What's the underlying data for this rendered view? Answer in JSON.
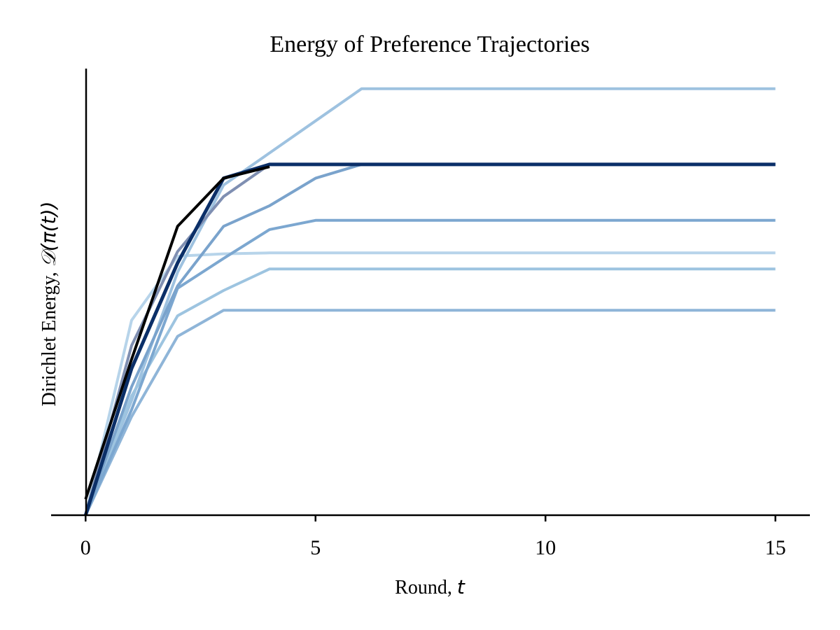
{
  "chart_data": {
    "type": "line",
    "title": "Energy of Preference Trajectories",
    "xlabel": {
      "text": "Round, ",
      "math": "t"
    },
    "ylabel": {
      "text": "Dirichlet Energy, ",
      "math": "𝒟(π(t))"
    },
    "xlim": [
      -0.75,
      15.75
    ],
    "ylim": [
      0,
      9.74
    ],
    "xticks": [
      0,
      5,
      10,
      15
    ],
    "yticks": [],
    "grid": false,
    "legend": "none",
    "series": [
      {
        "color": "#b7d4ea",
        "alpha": 1,
        "width": 4,
        "x": [
          0,
          1,
          2,
          3,
          4,
          5,
          6,
          15
        ],
        "y": [
          0,
          4.25,
          5.65,
          5.7,
          5.72,
          5.72,
          5.72,
          5.72
        ]
      },
      {
        "color": "#9ec2e0",
        "alpha": 1,
        "width": 4,
        "x": [
          0,
          1,
          2,
          3,
          4,
          5,
          6,
          15
        ],
        "y": [
          0,
          2.5,
          5.3,
          7.2,
          7.9,
          8.6,
          9.3,
          9.3
        ]
      },
      {
        "color": "#9dc4e0",
        "alpha": 1,
        "width": 4,
        "x": [
          0,
          1,
          2,
          3,
          4,
          5,
          15
        ],
        "y": [
          0,
          2.6,
          4.35,
          4.9,
          5.37,
          5.37,
          5.37
        ]
      },
      {
        "color": "#8fb5d8",
        "alpha": 1,
        "width": 4,
        "x": [
          0,
          1,
          2,
          3,
          4,
          5,
          15
        ],
        "y": [
          0,
          2.15,
          3.9,
          4.47,
          4.47,
          4.47,
          4.47
        ]
      },
      {
        "color": "#7ca7d0",
        "alpha": 1,
        "width": 4,
        "x": [
          0,
          1,
          2,
          3,
          4,
          5,
          15
        ],
        "y": [
          0,
          2.3,
          4.95,
          5.6,
          6.23,
          6.43,
          6.43
        ]
      },
      {
        "color": "#7aa3cc",
        "alpha": 1,
        "width": 4,
        "x": [
          0,
          1,
          2,
          3,
          4,
          5,
          6,
          15
        ],
        "y": [
          0,
          2.8,
          5.0,
          6.3,
          6.75,
          7.35,
          7.65,
          7.65
        ]
      },
      {
        "color": "#7f8fb2",
        "alpha": 1,
        "width": 4,
        "x": [
          0,
          1,
          2,
          3,
          4,
          5,
          15
        ],
        "y": [
          0,
          3.7,
          5.75,
          6.95,
          7.65,
          7.65,
          7.65
        ]
      },
      {
        "color": "#0b2f68",
        "alpha": 1,
        "width": 5,
        "x": [
          0,
          1,
          2,
          3,
          4,
          5,
          15
        ],
        "y": [
          0,
          3.2,
          5.5,
          7.35,
          7.65,
          7.65,
          7.65
        ]
      },
      {
        "color": "#000000",
        "alpha": 1,
        "width": 4,
        "x": [
          0,
          1,
          2,
          3,
          4
        ],
        "y": [
          0.35,
          3.4,
          6.3,
          7.35,
          7.6
        ]
      }
    ]
  }
}
